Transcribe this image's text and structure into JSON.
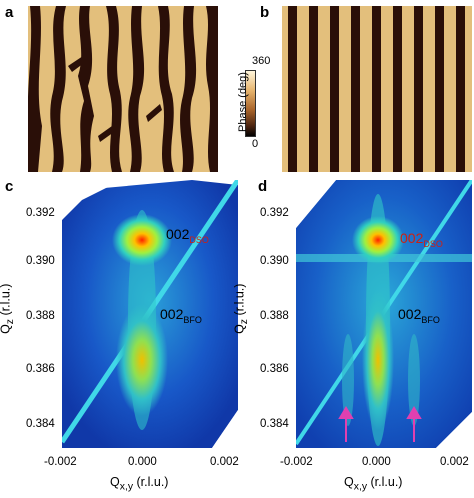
{
  "panels": {
    "a": "a",
    "b": "b",
    "c": "c",
    "d": "d"
  },
  "colorbar": {
    "max": "360",
    "min": "0",
    "label": "Phase (deg)",
    "colors": [
      "#fff6dc",
      "#e6b46e",
      "#a8642a",
      "#4a2310",
      "#000000"
    ]
  },
  "rsm_c": {
    "ylabel_main": "Q",
    "ylabel_sub": "z",
    "ylabel_unit": " (r.l.u.)",
    "xlabel_main": "Q",
    "xlabel_sub": "x,y",
    "xlabel_unit": " (r.l.u.)",
    "yticks": [
      "0.392",
      "0.390",
      "0.388",
      "0.386",
      "0.384"
    ],
    "xticks": [
      "-0.002",
      "0.000",
      "0.002"
    ],
    "peak_dso_main": "002",
    "peak_dso_sub": "DSO",
    "peak_bfo_main": "002",
    "peak_bfo_sub": "BFO"
  },
  "rsm_d": {
    "ylabel_main": "Q",
    "ylabel_sub": "z",
    "ylabel_unit": " (r.l.u.)",
    "xlabel_main": "Q",
    "xlabel_sub": "x,y",
    "xlabel_unit": " (r.l.u.)",
    "yticks": [
      "0.392",
      "0.390",
      "0.388",
      "0.386",
      "0.384"
    ],
    "xticks": [
      "-0.002",
      "0.000",
      "0.002"
    ],
    "peak_dso_main": "002",
    "peak_dso_sub": "DSO",
    "peak_bfo_main": "002",
    "peak_bfo_sub": "BFO"
  },
  "colors": {
    "afm_light": "#e3bf7c",
    "afm_dark": "#2a0f08",
    "dso_label": "#d02010",
    "arrow": "#e040b0"
  }
}
